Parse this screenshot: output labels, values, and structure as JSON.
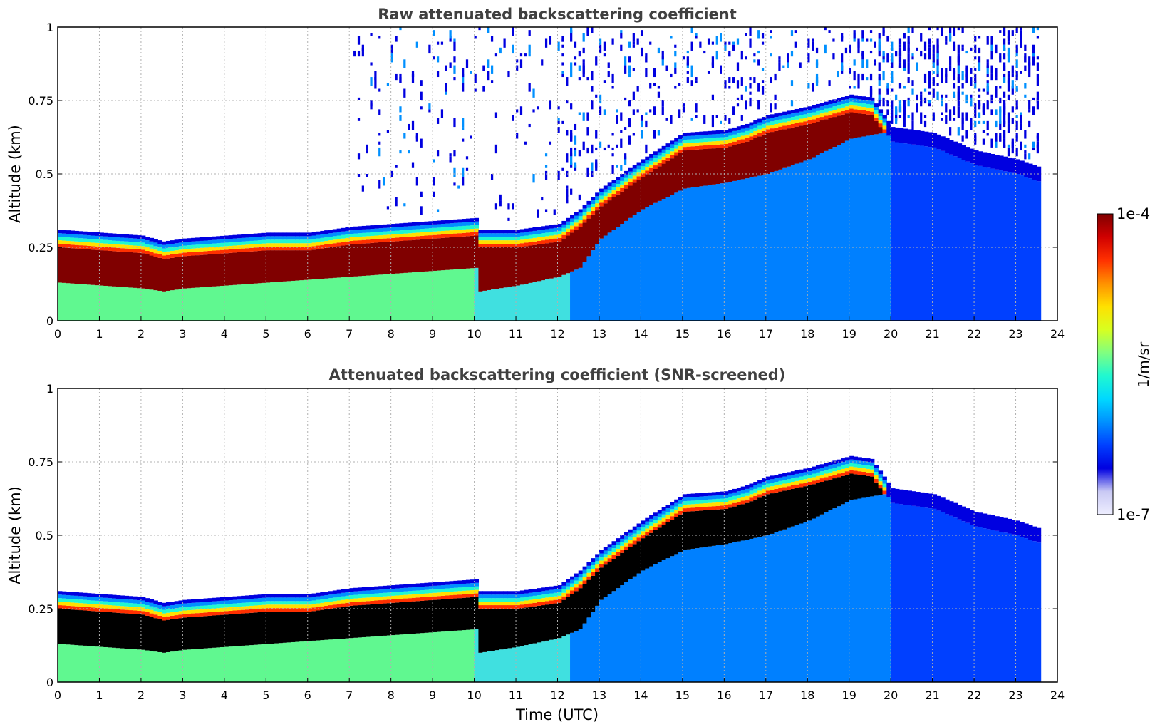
{
  "chart_data": [
    {
      "type": "heatmap",
      "title": "Raw attenuated backscattering coefficient",
      "xlabel": "",
      "ylabel": "Altitude (km)",
      "xlim": [
        0,
        24
      ],
      "ylim": [
        0,
        1
      ],
      "x_ticks": [
        0,
        1,
        2,
        3,
        4,
        5,
        6,
        7,
        8,
        9,
        10,
        11,
        12,
        13,
        14,
        15,
        16,
        17,
        18,
        19,
        20,
        21,
        22,
        23,
        24
      ],
      "y_ticks": [
        0,
        0.25,
        0.5,
        0.75,
        1
      ],
      "y_tick_labels": [
        "0",
        "0.25",
        "0.5",
        "0.75",
        "1"
      ],
      "grid": true,
      "data_end_time": 23.6,
      "layer_top_km": [
        [
          0,
          0.31
        ],
        [
          1,
          0.3
        ],
        [
          2,
          0.29
        ],
        [
          2.5,
          0.27
        ],
        [
          3,
          0.28
        ],
        [
          4,
          0.29
        ],
        [
          5,
          0.3
        ],
        [
          6,
          0.3
        ],
        [
          7,
          0.32
        ],
        [
          8,
          0.33
        ],
        [
          9,
          0.34
        ],
        [
          10,
          0.35
        ],
        [
          10.1,
          0.31
        ],
        [
          11,
          0.31
        ],
        [
          12,
          0.33
        ],
        [
          12.5,
          0.38
        ],
        [
          13,
          0.45
        ],
        [
          14,
          0.55
        ],
        [
          15,
          0.64
        ],
        [
          16,
          0.65
        ],
        [
          16.5,
          0.67
        ],
        [
          17,
          0.7
        ],
        [
          18,
          0.73
        ],
        [
          19,
          0.77
        ],
        [
          19.5,
          0.76
        ],
        [
          20,
          0.66
        ],
        [
          21,
          0.64
        ],
        [
          22,
          0.58
        ],
        [
          23,
          0.55
        ],
        [
          23.6,
          0.52
        ]
      ],
      "layer_base_km": [
        [
          0,
          0.13
        ],
        [
          1,
          0.12
        ],
        [
          2,
          0.11
        ],
        [
          2.5,
          0.1
        ],
        [
          3,
          0.11
        ],
        [
          4,
          0.12
        ],
        [
          5,
          0.13
        ],
        [
          6,
          0.14
        ],
        [
          7,
          0.15
        ],
        [
          8,
          0.16
        ],
        [
          9,
          0.17
        ],
        [
          10,
          0.18
        ],
        [
          10.1,
          0.1
        ],
        [
          11,
          0.12
        ],
        [
          12,
          0.15
        ],
        [
          12.5,
          0.18
        ],
        [
          13,
          0.28
        ],
        [
          14,
          0.38
        ],
        [
          15,
          0.45
        ],
        [
          16,
          0.47
        ],
        [
          17,
          0.5
        ],
        [
          18,
          0.55
        ],
        [
          19,
          0.62
        ],
        [
          19.8,
          0.64
        ]
      ],
      "noise_present": true
    },
    {
      "type": "heatmap",
      "title": "Attenuated backscattering coefficient (SNR-screened)",
      "xlabel": "Time (UTC)",
      "ylabel": "Altitude (km)",
      "xlim": [
        0,
        24
      ],
      "ylim": [
        0,
        1
      ],
      "x_ticks": [
        0,
        1,
        2,
        3,
        4,
        5,
        6,
        7,
        8,
        9,
        10,
        11,
        12,
        13,
        14,
        15,
        16,
        17,
        18,
        19,
        20,
        21,
        22,
        23,
        24
      ],
      "y_ticks": [
        0,
        0.25,
        0.5,
        0.75,
        1
      ],
      "y_tick_labels": [
        "0",
        "0.25",
        "0.5",
        "0.75",
        "1"
      ],
      "grid": true,
      "data_end_time": 23.6,
      "saturated_color": "#000000",
      "noise_present": false
    }
  ],
  "colorbar": {
    "label": "1/m/sr",
    "max_label": "1e-4",
    "min_label": "1e-7",
    "range": [
      1e-07,
      0.0001
    ],
    "scale": "log",
    "colors": [
      "#eeeeff",
      "#c9c9f4",
      "#0000e0",
      "#0040ff",
      "#0090ff",
      "#00d8ff",
      "#20f8d0",
      "#80ff80",
      "#d8ff20",
      "#ffe000",
      "#ff9000",
      "#ff3000",
      "#d00000",
      "#800000"
    ]
  }
}
